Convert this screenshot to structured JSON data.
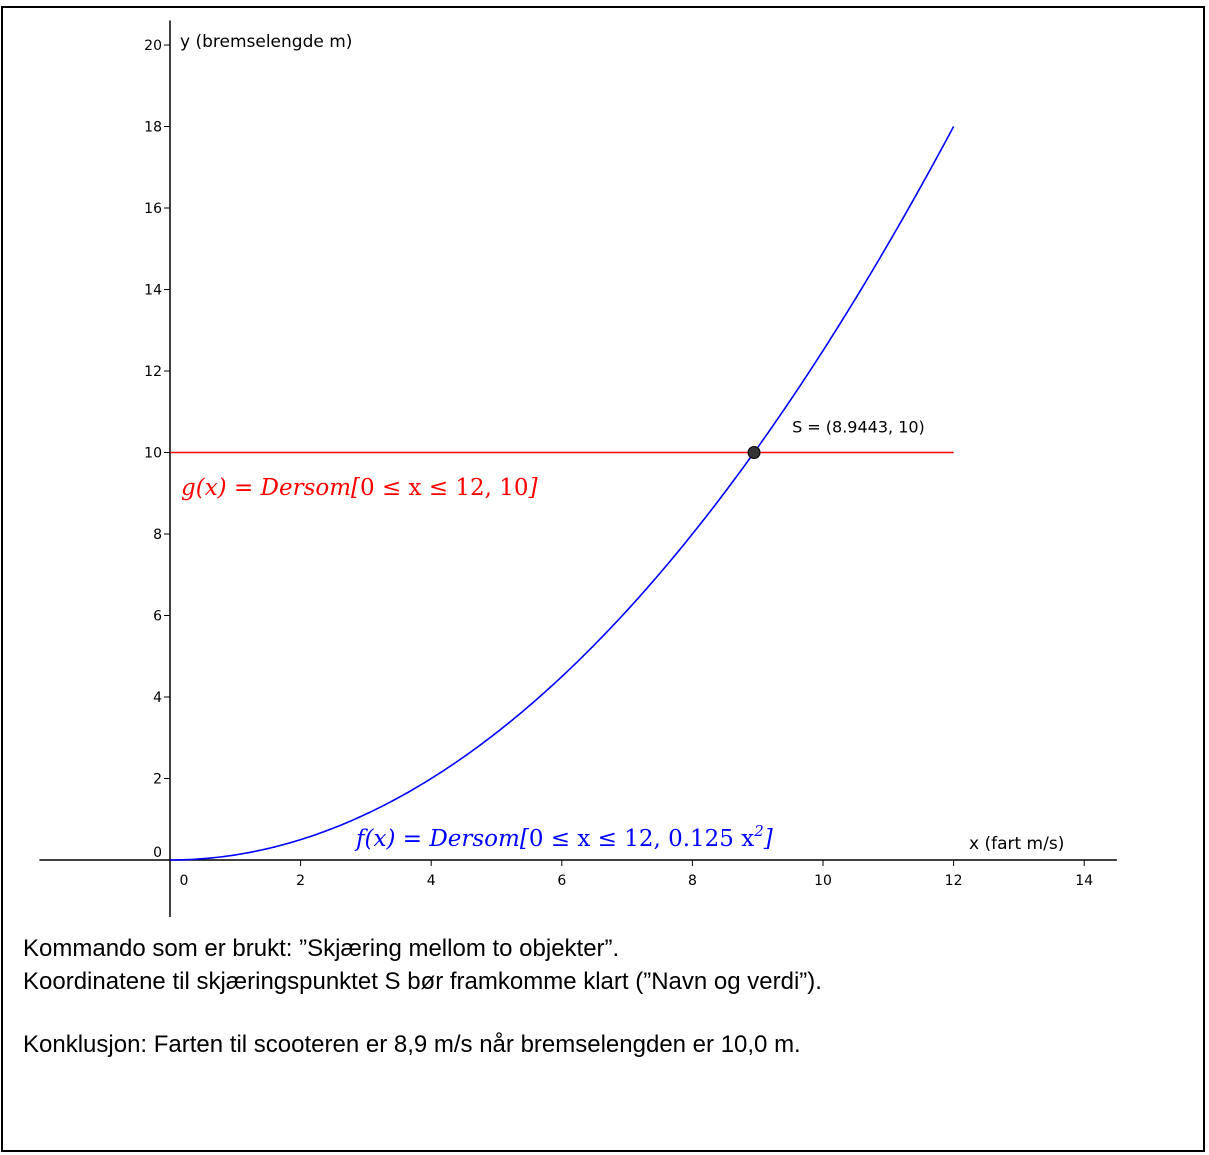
{
  "chart_data": {
    "type": "line",
    "xlabel": "x (fart  m/s)",
    "ylabel": "y (bremselengde  m)",
    "xlim": [
      -2,
      14.5
    ],
    "ylim": [
      -1.4,
      20.6
    ],
    "xticks": [
      0,
      2,
      4,
      6,
      8,
      10,
      12,
      14
    ],
    "yticks": [
      0,
      2,
      4,
      6,
      8,
      10,
      12,
      14,
      16,
      18,
      20
    ],
    "grid": false,
    "series": [
      {
        "name": "f(x) = Dersom[0 ≤ x ≤ 12, 0.125 x²]",
        "color": "#0000ff",
        "x": [
          0,
          1,
          2,
          3,
          4,
          5,
          6,
          7,
          8,
          9,
          10,
          11,
          12
        ],
        "y": [
          0,
          0.125,
          0.5,
          1.125,
          2,
          3.125,
          4.5,
          6.125,
          8,
          10.125,
          12.5,
          15.125,
          18
        ]
      },
      {
        "name": "g(x) = Dersom[0 ≤ x ≤ 12, 10]",
        "color": "#ff0000",
        "x": [
          0,
          12
        ],
        "y": [
          10,
          10
        ]
      }
    ],
    "point": {
      "label": "S = (8.9443, 10)",
      "x": 8.9443,
      "y": 10,
      "color": "#333333"
    },
    "labels": {
      "f_prefix": "f(x)  =  Dersom[",
      "f_mid": "0 ≤ x ≤ 12, 0.125 x",
      "f_sup": "2",
      "f_suffix": "]",
      "g_prefix": "g(x)  =  Dersom[",
      "g_mid": "0 ≤ x ≤ 12, 10",
      "g_suffix": "]"
    }
  },
  "notes": {
    "line1": "Kommando som er brukt: ”Skjæring mellom to objekter”.",
    "line2": "Koordinatene til skjæringspunktet  S  bør framkomme klart (”Navn og verdi”).",
    "line3": "Konklusjon: Farten til scooteren er 8,9 m/s når bremselengden er 10,0 m."
  }
}
